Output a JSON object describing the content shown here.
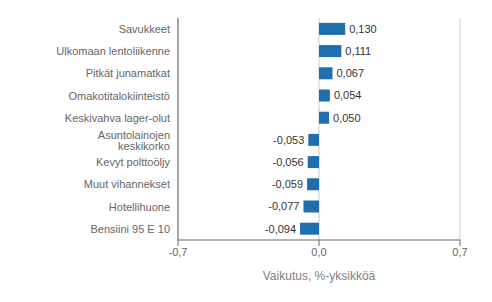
{
  "chart_data": {
    "type": "bar",
    "orientation": "horizontal",
    "categories": [
      "Bensiini 95 E 10",
      "Hotellihuone",
      "Muut vihannekset",
      "Kevyt polttoöljy",
      "Asuntolainojen keskikorko",
      "Keskivahva lager-olut",
      "Omakotitalokiinteistö",
      "Pitkät junamatkat",
      "Ulkomaan lentoliikenne",
      "Savukkeet"
    ],
    "values": [
      -0.094,
      -0.077,
      -0.059,
      -0.056,
      -0.053,
      0.05,
      0.054,
      0.067,
      0.111,
      0.13
    ],
    "value_labels": [
      "-0,094",
      "-0,077",
      "-0,059",
      "-0,056",
      "-0,053",
      "0,050",
      "0,054",
      "0,067",
      "0,111",
      "0,130"
    ],
    "data_labels": true,
    "color": "#1F6FAE",
    "xlabel": "Vaikutus, %-yksikköä",
    "xlim": [
      -0.7,
      0.7
    ],
    "xticks": [
      {
        "value": -0.7,
        "label": "-0,7"
      },
      {
        "value": 0.0,
        "label": "0,0"
      },
      {
        "value": 0.7,
        "label": "0,7"
      }
    ],
    "grid": true
  }
}
